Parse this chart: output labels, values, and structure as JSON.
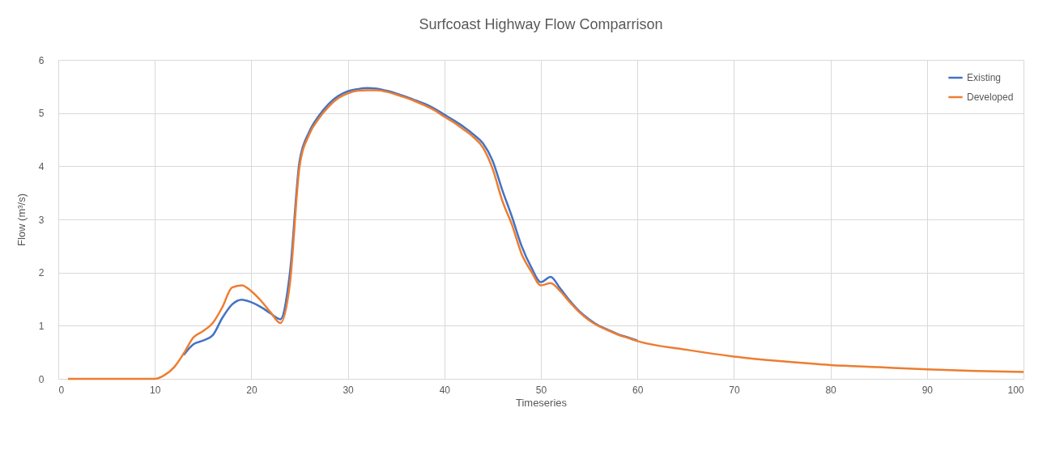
{
  "chart_data": {
    "type": "line",
    "title": "Surfcoast Highway Flow Comparrison",
    "xlabel": "Timeseries",
    "ylabel": "Flow (m³/s)",
    "x": [
      1,
      5,
      10,
      11,
      12,
      13,
      14,
      15,
      16,
      17,
      18,
      19,
      20,
      21,
      22,
      23,
      24,
      25,
      26,
      27,
      28,
      29,
      30,
      31,
      32,
      33,
      34,
      35,
      36,
      37,
      38,
      39,
      40,
      41,
      42,
      43,
      44,
      45,
      46,
      47,
      48,
      49,
      50,
      51,
      52,
      53,
      54,
      55,
      56,
      57,
      58,
      59,
      60,
      65,
      70,
      75,
      80,
      85,
      90,
      95,
      100
    ],
    "series": [
      {
        "name": "Existing",
        "color": "#4472c4",
        "values": [
          null,
          null,
          null,
          null,
          null,
          0.45,
          0.65,
          0.72,
          0.82,
          1.15,
          1.4,
          1.49,
          1.44,
          1.35,
          1.23,
          1.12,
          2.0,
          4.1,
          4.65,
          4.95,
          5.17,
          5.32,
          5.41,
          5.45,
          5.47,
          5.46,
          5.42,
          5.37,
          5.31,
          5.24,
          5.17,
          5.08,
          4.97,
          4.86,
          4.74,
          4.6,
          4.43,
          4.1,
          3.55,
          3.05,
          2.5,
          2.1,
          1.82,
          1.92,
          1.7,
          1.47,
          1.27,
          1.12,
          1.0,
          0.92,
          0.84,
          0.78,
          0.72,
          null,
          null,
          null,
          null,
          null,
          null,
          null,
          null
        ]
      },
      {
        "name": "Developed",
        "color": "#ed7d31",
        "values": [
          0,
          0,
          0,
          0.07,
          0.22,
          0.48,
          0.78,
          0.9,
          1.05,
          1.35,
          1.72,
          1.76,
          1.65,
          1.47,
          1.25,
          1.05,
          1.8,
          4.0,
          4.6,
          4.9,
          5.12,
          5.28,
          5.37,
          5.42,
          5.43,
          5.43,
          5.4,
          5.35,
          5.29,
          5.22,
          5.14,
          5.05,
          4.93,
          4.82,
          4.69,
          4.55,
          4.35,
          3.95,
          3.35,
          2.9,
          2.35,
          2.02,
          1.76,
          1.8,
          1.65,
          1.44,
          1.25,
          1.1,
          0.99,
          0.91,
          0.83,
          0.77,
          0.71,
          0.55,
          0.42,
          0.33,
          0.26,
          0.22,
          0.18,
          0.15,
          0.13
        ]
      }
    ],
    "xlim": [
      0,
      100
    ],
    "xticks": [
      0,
      10,
      20,
      30,
      40,
      50,
      60,
      70,
      80,
      90,
      100
    ],
    "ylim": [
      0,
      6
    ],
    "yticks": [
      0,
      1,
      2,
      3,
      4,
      5,
      6
    ],
    "grid": true,
    "legend": "top right",
    "marker": "none",
    "line_style": "solid"
  }
}
